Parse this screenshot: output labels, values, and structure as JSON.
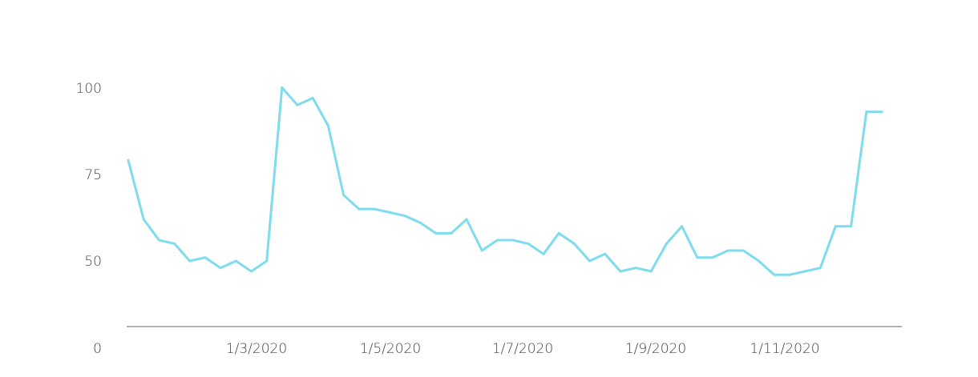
{
  "chart_data": {
    "type": "line",
    "title": "",
    "xlabel": "",
    "ylabel": "",
    "x_ticks": [
      "1/3/2020",
      "1/5/2020",
      "1/7/2020",
      "1/9/2020",
      "1/11/2020"
    ],
    "y_ticks": [
      0,
      50,
      75,
      100
    ],
    "y_tick_labels": [
      "0",
      "50",
      "75",
      "100"
    ],
    "colors": {
      "line": "#7fdcec",
      "axis": "#666666",
      "text": "#444444"
    },
    "series": [
      {
        "x": [
          "2020-01-19",
          "2020-01-26",
          "2020-02-02",
          "2020-02-09",
          "2020-02-16",
          "2020-02-23",
          "2020-03-01",
          "2020-03-08",
          "2020-03-15",
          "2020-03-22",
          "2020-03-29",
          "2020-04-05",
          "2020-04-12",
          "2020-04-19",
          "2020-04-26",
          "2020-05-03",
          "2020-05-10",
          "2020-05-17",
          "2020-05-24",
          "2020-05-31",
          "2020-06-07",
          "2020-06-14",
          "2020-06-21",
          "2020-06-28",
          "2020-07-05",
          "2020-07-12",
          "2020-07-19",
          "2020-07-26",
          "2020-08-02",
          "2020-08-09",
          "2020-08-16",
          "2020-08-23",
          "2020-08-30",
          "2020-09-06",
          "2020-09-13",
          "2020-09-20",
          "2020-09-27",
          "2020-10-04",
          "2020-10-11",
          "2020-10-18",
          "2020-10-25",
          "2020-11-01",
          "2020-11-08",
          "2020-11-15",
          "2020-11-22",
          "2020-11-29",
          "2020-12-06",
          "2020-12-13",
          "2020-12-20",
          "2020-12-27"
        ],
        "values": [
          79,
          62,
          56,
          55,
          50,
          51,
          48,
          50,
          47,
          50,
          100,
          95,
          97,
          89,
          69,
          65,
          65,
          64,
          63,
          61,
          58,
          58,
          62,
          53,
          56,
          56,
          55,
          52,
          58,
          55,
          50,
          52,
          47,
          48,
          47,
          55,
          60,
          51,
          51,
          53,
          53,
          50,
          46,
          46,
          47,
          48,
          60,
          60,
          93,
          93
        ]
      }
    ]
  }
}
